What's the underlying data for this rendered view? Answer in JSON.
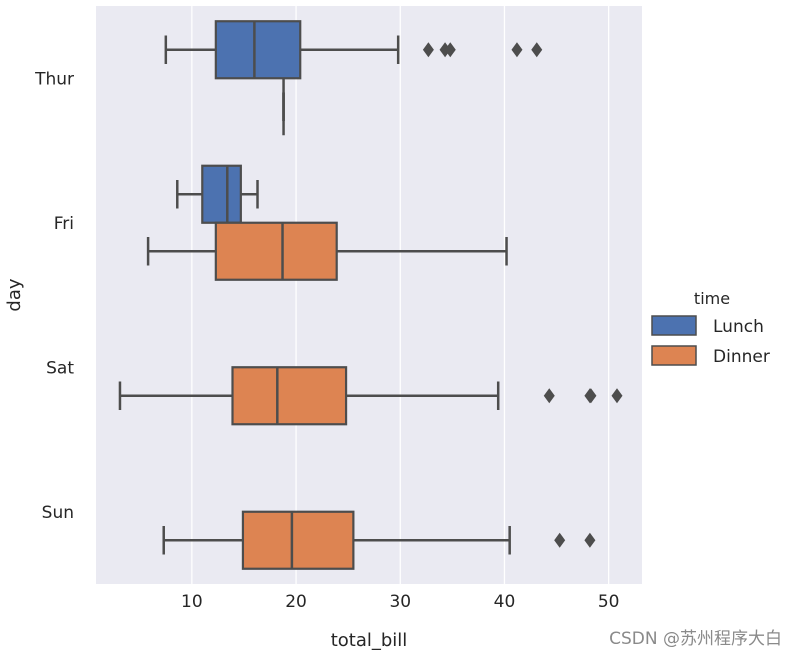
{
  "chart_data": {
    "type": "boxplot",
    "orientation": "horizontal",
    "xlabel": "total_bill",
    "ylabel": "day",
    "xlim": [
      0.8,
      53.2
    ],
    "xticks": [
      10,
      20,
      30,
      40,
      50
    ],
    "categories": [
      "Thur",
      "Fri",
      "Sat",
      "Sun"
    ],
    "grid": true,
    "colors": {
      "background": "#eaeaf2",
      "grid": "#ffffff",
      "box_edge": "#4d4d4d"
    },
    "legend": {
      "title": "time",
      "placement": "right",
      "entries": [
        {
          "label": "Lunch",
          "color": "#4c72b0"
        },
        {
          "label": "Dinner",
          "color": "#dd8452"
        }
      ]
    },
    "series": [
      {
        "name": "Lunch",
        "color": "#4c72b0",
        "boxes": [
          {
            "category": "Thur",
            "whisker_low": 7.5,
            "q1": 12.3,
            "median": 16.0,
            "q3": 20.4,
            "whisker_high": 29.8,
            "outliers": [
              32.7,
              34.3,
              34.8,
              41.2,
              43.1
            ]
          },
          {
            "category": "Fri",
            "whisker_low": 8.6,
            "q1": 11.0,
            "median": 13.4,
            "q3": 14.7,
            "whisker_high": 16.3,
            "outliers": []
          }
        ]
      },
      {
        "name": "Dinner",
        "color": "#dd8452",
        "boxes": [
          {
            "category": "Thur",
            "whisker_low": 18.8,
            "q1": 18.8,
            "median": 18.8,
            "q3": 18.8,
            "whisker_high": 18.8,
            "outliers": []
          },
          {
            "category": "Fri",
            "whisker_low": 5.8,
            "q1": 12.3,
            "median": 18.7,
            "q3": 23.9,
            "whisker_high": 40.2,
            "outliers": []
          },
          {
            "category": "Sat",
            "whisker_low": 3.1,
            "q1": 13.9,
            "median": 18.2,
            "q3": 24.8,
            "whisker_high": 39.4,
            "outliers": [
              44.3,
              48.2,
              48.3,
              50.8
            ]
          },
          {
            "category": "Sun",
            "whisker_low": 7.3,
            "q1": 14.9,
            "median": 19.6,
            "q3": 25.5,
            "whisker_high": 40.5,
            "outliers": [
              45.3,
              48.2
            ]
          }
        ]
      }
    ]
  },
  "watermark": "CSDN @苏州程序大白"
}
